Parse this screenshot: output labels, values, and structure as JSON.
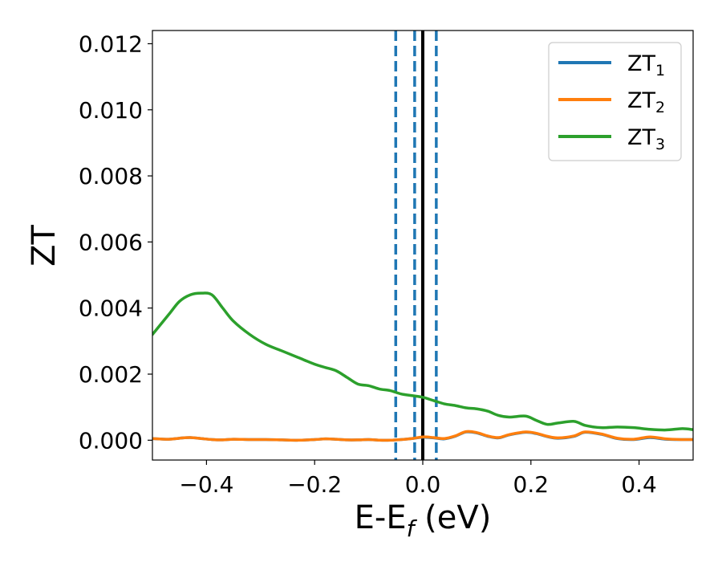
{
  "chart_data": {
    "type": "line",
    "xlabel": "E-E",
    "xlabel_sub": "f",
    "xlabel_unit": " (eV)",
    "ylabel": "ZT",
    "xlim": [
      -0.5,
      0.5
    ],
    "ylim": [
      -0.0006,
      0.0124
    ],
    "x_ticks": [
      -0.4,
      -0.2,
      0.0,
      0.2,
      0.4
    ],
    "x_tick_labels": [
      "−0.4",
      "−0.2",
      "0.0",
      "0.2",
      "0.4"
    ],
    "y_ticks": [
      0.0,
      0.002,
      0.004,
      0.006,
      0.008,
      0.01,
      0.012
    ],
    "y_tick_labels": [
      "0.000",
      "0.002",
      "0.004",
      "0.006",
      "0.008",
      "0.010",
      "0.012"
    ],
    "grid": false,
    "legend_position": "top-right",
    "vertical_lines": [
      {
        "x": -0.05,
        "style": "dashed",
        "color": "#1f77b4"
      },
      {
        "x": -0.015,
        "style": "dashed",
        "color": "#1f77b4"
      },
      {
        "x": 0.0,
        "style": "solid",
        "color": "#000000"
      },
      {
        "x": 0.025,
        "style": "dashed",
        "color": "#1f77b4"
      }
    ],
    "x": [
      -0.5,
      -0.47,
      -0.45,
      -0.43,
      -0.41,
      -0.39,
      -0.37,
      -0.35,
      -0.32,
      -0.29,
      -0.26,
      -0.23,
      -0.2,
      -0.18,
      -0.16,
      -0.14,
      -0.12,
      -0.1,
      -0.08,
      -0.06,
      -0.04,
      -0.02,
      0.0,
      0.02,
      0.04,
      0.06,
      0.08,
      0.1,
      0.12,
      0.14,
      0.16,
      0.19,
      0.21,
      0.23,
      0.25,
      0.28,
      0.3,
      0.33,
      0.36,
      0.39,
      0.42,
      0.45,
      0.48,
      0.5
    ],
    "series": [
      {
        "name": "ZT",
        "name_sub": "1",
        "color": "#1f77b4",
        "values": [
          5e-05,
          3e-05,
          6e-05,
          8e-05,
          5e-05,
          2e-05,
          1e-05,
          3e-05,
          2e-05,
          2e-05,
          1e-05,
          0.0,
          2e-05,
          4e-05,
          3e-05,
          1e-05,
          1e-05,
          2e-05,
          0.0,
          0.0,
          2e-05,
          5e-05,
          9e-05,
          7e-05,
          4e-05,
          0.00012,
          0.00025,
          0.00022,
          0.00012,
          7e-05,
          0.00016,
          0.00024,
          0.0002,
          0.00011,
          6e-05,
          0.00012,
          0.00024,
          0.00018,
          5e-05,
          2e-05,
          8e-05,
          3e-05,
          2e-05,
          2e-05
        ]
      },
      {
        "name": "ZT",
        "name_sub": "2",
        "color": "#ff7f0e",
        "values": [
          5e-05,
          3e-05,
          6e-05,
          8e-05,
          5e-05,
          2e-05,
          1e-05,
          3e-05,
          2e-05,
          2e-05,
          1e-05,
          0.0,
          2e-05,
          4e-05,
          3e-05,
          1e-05,
          1e-05,
          2e-05,
          0.0,
          0.0,
          2e-05,
          5e-05,
          0.0001,
          8e-05,
          5e-05,
          0.00013,
          0.00026,
          0.00023,
          0.00013,
          8e-05,
          0.00017,
          0.00025,
          0.00021,
          0.00012,
          7e-05,
          0.00013,
          0.00025,
          0.00019,
          6e-05,
          3e-05,
          0.0001,
          4e-05,
          2e-05,
          2e-05
        ]
      },
      {
        "name": "ZT",
        "name_sub": "3",
        "color": "#2ca02c",
        "values": [
          0.0032,
          0.0038,
          0.0042,
          0.0044,
          0.00445,
          0.0044,
          0.004,
          0.0036,
          0.0032,
          0.0029,
          0.0027,
          0.0025,
          0.0023,
          0.0022,
          0.0021,
          0.0019,
          0.0017,
          0.00165,
          0.00155,
          0.0015,
          0.0014,
          0.00135,
          0.0013,
          0.0012,
          0.0011,
          0.00105,
          0.00098,
          0.00095,
          0.00088,
          0.00075,
          0.0007,
          0.00073,
          0.0006,
          0.00048,
          0.00052,
          0.00057,
          0.00045,
          0.00038,
          0.0004,
          0.00038,
          0.00033,
          0.00031,
          0.00035,
          0.00032
        ]
      }
    ]
  }
}
